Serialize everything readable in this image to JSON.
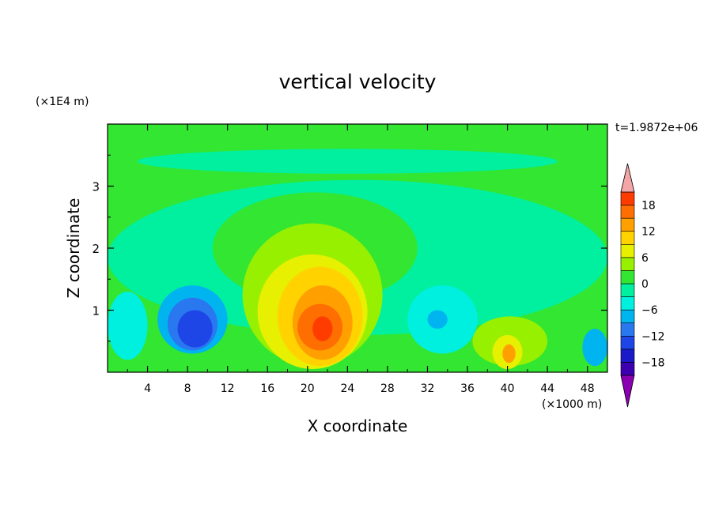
{
  "chart_data": {
    "type": "heatmap",
    "title": "vertical velocity",
    "xlabel": "X coordinate",
    "ylabel": "Z coordinate",
    "x_unit": "(×1000 m)",
    "y_unit": "(×1E4 m)",
    "time_label": "t=1.9872e+06",
    "xlim": [
      0,
      50
    ],
    "ylim": [
      0,
      4
    ],
    "x_ticks": [
      4,
      8,
      12,
      16,
      20,
      24,
      28,
      32,
      36,
      40,
      44,
      48
    ],
    "x_tick_labels": [
      "4",
      "8",
      "12",
      "16",
      "20",
      "24",
      "28",
      "32",
      "36",
      "40",
      "44",
      "48"
    ],
    "y_ticks": [
      1,
      2,
      3
    ],
    "y_tick_labels": [
      "1",
      "2",
      "3"
    ],
    "colorbar": {
      "levels": [
        -21,
        -18,
        -15,
        -12,
        -9,
        -6,
        -3,
        0,
        3,
        6,
        9,
        12,
        15,
        18,
        21
      ],
      "tick_values": [
        -18,
        -12,
        -6,
        0,
        6,
        12,
        18
      ],
      "tick_labels": [
        "−18",
        "−12",
        "−6",
        "0",
        "6",
        "12",
        "18"
      ],
      "under_color": "#8a00b0",
      "over_color": "#f4a6a6",
      "colors": [
        "#3c00b0",
        "#1a1ac8",
        "#1e46e6",
        "#2a78f0",
        "#00b4f0",
        "#00f0e0",
        "#00f0a0",
        "#32e632",
        "#96f000",
        "#e6f000",
        "#ffd200",
        "#ffa000",
        "#ff6e00",
        "#ff3c00"
      ]
    },
    "regions": [
      {
        "level": 0,
        "x": [
          0,
          50
        ],
        "z": [
          0,
          4
        ],
        "value": 0.0
      },
      {
        "level": 1,
        "x": [
          0,
          50
        ],
        "z": [
          0.6,
          3.1
        ],
        "value": -2.0
      },
      {
        "level": 1,
        "x": [
          3,
          45
        ],
        "z": [
          3.2,
          3.6
        ],
        "value": -2.0
      },
      {
        "level": 2,
        "x": [
          10.5,
          31
        ],
        "z": [
          1.1,
          2.9
        ],
        "value": 1.0
      },
      {
        "level": 3,
        "x": [
          13.5,
          27.5
        ],
        "z": [
          0.1,
          2.4
        ],
        "value": 4.0
      },
      {
        "level": 4,
        "x": [
          15,
          26
        ],
        "z": [
          0.05,
          1.9
        ],
        "value": 7.0
      },
      {
        "level": 5,
        "x": [
          17,
          25.5
        ],
        "z": [
          0.1,
          1.7
        ],
        "value": 10.0
      },
      {
        "level": 6,
        "x": [
          18.5,
          24.5
        ],
        "z": [
          0.2,
          1.4
        ],
        "value": 13.0
      },
      {
        "level": 7,
        "x": [
          19,
          23.5
        ],
        "z": [
          0.35,
          1.1
        ],
        "value": 16.0
      },
      {
        "level": 8,
        "x": [
          20.5,
          22.5
        ],
        "z": [
          0.5,
          0.9
        ],
        "value": 19.0
      },
      {
        "level": 9,
        "x": [
          5,
          12
        ],
        "z": [
          0.3,
          1.4
        ],
        "value": -7.0
      },
      {
        "level": 10,
        "x": [
          6,
          11
        ],
        "z": [
          0.35,
          1.2
        ],
        "value": -10.0
      },
      {
        "level": 11,
        "x": [
          7,
          10.5
        ],
        "z": [
          0.4,
          1.0
        ],
        "value": -13.0
      },
      {
        "level": 12,
        "x": [
          30,
          37
        ],
        "z": [
          0.3,
          1.4
        ],
        "value": -5.0
      },
      {
        "level": 13,
        "x": [
          32,
          34
        ],
        "z": [
          0.7,
          1.0
        ],
        "value": -9.0
      },
      {
        "level": 14,
        "x": [
          36.5,
          44
        ],
        "z": [
          0.1,
          0.9
        ],
        "value": 3.0
      },
      {
        "level": 15,
        "x": [
          38.5,
          41.5
        ],
        "z": [
          0.05,
          0.6
        ],
        "value": 8.0
      },
      {
        "level": 16,
        "x": [
          39.5,
          40.8
        ],
        "z": [
          0.15,
          0.45
        ],
        "value": 14.0
      },
      {
        "level": 17,
        "x": [
          47.5,
          50
        ],
        "z": [
          0.1,
          0.7
        ],
        "value": -8.0
      },
      {
        "level": 18,
        "x": [
          0,
          4
        ],
        "z": [
          0.2,
          1.3
        ],
        "value": -4.0
      }
    ]
  }
}
